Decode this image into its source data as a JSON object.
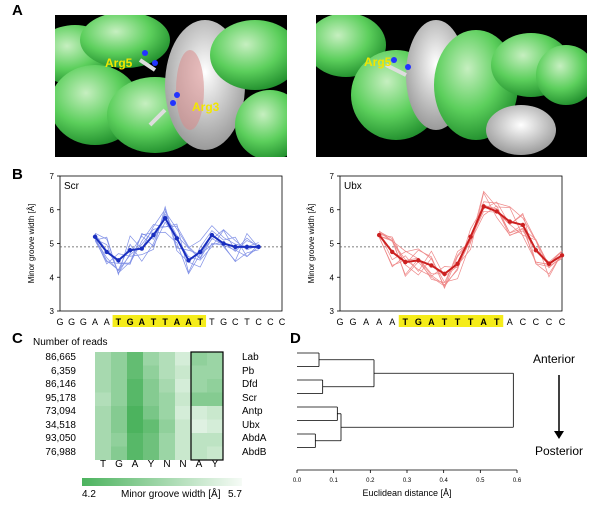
{
  "panels": {
    "A": "A",
    "B": "B",
    "C": "C",
    "D": "D"
  },
  "panel_a": {
    "left_labels": [
      "Arg5",
      "Arg3"
    ],
    "right_labels": [
      "Arg5"
    ]
  },
  "chart_data": [
    {
      "type": "line",
      "title": "Scr",
      "ylabel": "Minor groove width [Å]",
      "ylim": [
        3,
        7
      ],
      "yticks": [
        "3",
        "4",
        "5",
        "6",
        "7"
      ],
      "reference_line": 4.9,
      "sequence": [
        "G",
        "G",
        "G",
        "A",
        "A",
        "T",
        "G",
        "A",
        "T",
        "T",
        "A",
        "A",
        "T",
        "T",
        "G",
        "C",
        "T",
        "C",
        "C",
        "C"
      ],
      "core_highlight": [
        5,
        12
      ],
      "series": [
        {
          "name": "mean",
          "color": "#1a2fbf",
          "x_index": [
            3,
            4,
            5,
            6,
            7,
            8,
            9,
            10,
            11,
            12,
            13,
            14,
            15,
            16,
            17
          ],
          "values": [
            5.2,
            4.75,
            4.5,
            4.8,
            4.85,
            5.25,
            5.75,
            5.15,
            4.5,
            4.75,
            5.25,
            5.0,
            4.9,
            4.9,
            4.9
          ]
        }
      ],
      "traces_color": "#8090e6",
      "traces_count": 8
    },
    {
      "type": "line",
      "title": "Ubx",
      "ylabel": "Minor groove width [Å]",
      "ylim": [
        3,
        7
      ],
      "yticks": [
        "3",
        "4",
        "5",
        "6",
        "7"
      ],
      "reference_line": 4.9,
      "sequence": [
        "G",
        "G",
        "A",
        "A",
        "A",
        "T",
        "G",
        "A",
        "T",
        "T",
        "T",
        "A",
        "T",
        "A",
        "C",
        "C",
        "C",
        "C"
      ],
      "core_highlight": [
        5,
        12
      ],
      "series": [
        {
          "name": "mean",
          "color": "#cc2020",
          "x_index": [
            3,
            4,
            5,
            6,
            7,
            8,
            9,
            10,
            11,
            12,
            13,
            14,
            15,
            16,
            17
          ],
          "values": [
            5.25,
            4.75,
            4.45,
            4.5,
            4.35,
            4.1,
            4.4,
            5.2,
            6.1,
            5.95,
            5.65,
            5.55,
            4.8,
            4.4,
            4.65
          ]
        }
      ],
      "traces_color": "#ee8888",
      "traces_count": 9
    },
    {
      "type": "heatmap",
      "title": "Number of reads",
      "rows": [
        "Lab",
        "Pb",
        "Dfd",
        "Scr",
        "Antp",
        "Ubx",
        "AbdA",
        "AbdB"
      ],
      "reads": [
        "86,665",
        "6,359",
        "86,146",
        "95,178",
        "73,094",
        "34,518",
        "93,050",
        "76,988"
      ],
      "columns": [
        "T",
        "G",
        "A",
        "Y",
        "N",
        "N",
        "A",
        "Y"
      ],
      "values": [
        [
          5.0,
          4.8,
          4.4,
          4.9,
          5.1,
          5.4,
          4.8,
          4.9
        ],
        [
          5.0,
          4.8,
          4.4,
          4.8,
          5.1,
          5.3,
          4.9,
          4.9
        ],
        [
          5.0,
          4.8,
          4.3,
          4.7,
          5.0,
          5.4,
          4.9,
          4.8
        ],
        [
          5.1,
          4.8,
          4.3,
          4.7,
          4.9,
          5.3,
          4.7,
          4.7
        ],
        [
          5.0,
          4.7,
          4.2,
          4.6,
          4.9,
          5.4,
          5.4,
          5.3
        ],
        [
          5.0,
          4.7,
          4.2,
          4.4,
          4.8,
          5.3,
          5.5,
          5.4
        ],
        [
          5.0,
          4.8,
          4.3,
          4.5,
          4.9,
          5.3,
          5.2,
          5.2
        ],
        [
          5.0,
          4.7,
          4.3,
          4.5,
          4.9,
          5.3,
          5.2,
          5.3
        ]
      ],
      "colorbar": {
        "min": "4.2",
        "max": "5.7",
        "label": "Minor groove width [Å]",
        "low_color": "#4cb35e",
        "high_color": "#f6fbf6"
      }
    },
    {
      "type": "dendrogram",
      "xlabel": "Euclidean distance [Å]",
      "xticks": [
        "0.0",
        "0.1",
        "0.2",
        "0.3",
        "0.4",
        "0.5",
        "0.6"
      ],
      "xlim": [
        0,
        0.6
      ],
      "leaves": [
        "Lab",
        "Pb",
        "Dfd",
        "Scr",
        "Antp",
        "Ubx",
        "AbdA",
        "AbdB"
      ],
      "merges": [
        {
          "a": "Lab",
          "b": "Pb",
          "height": 0.06
        },
        {
          "a": "Dfd",
          "b": "Scr",
          "height": 0.07
        },
        {
          "a": "AbdA",
          "b": "AbdB",
          "height": 0.05
        },
        {
          "a": "Antp",
          "b": "Ubx",
          "height": 0.11
        },
        {
          "a": "Lab+Pb",
          "b": "Dfd+Scr",
          "height": 0.21
        },
        {
          "a": "Antp+Ubx",
          "b": "AbdA+AbdB",
          "height": 0.12
        },
        {
          "a": "anterior",
          "b": "posterior",
          "height": 0.59
        }
      ],
      "annotation_top": "Anterior",
      "annotation_bottom": "Posterior"
    }
  ]
}
